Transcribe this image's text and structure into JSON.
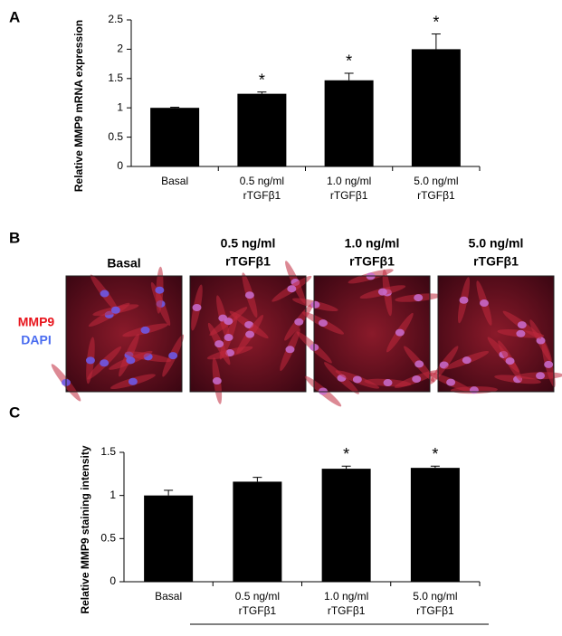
{
  "panel_labels": [
    "A",
    "B",
    "C"
  ],
  "image_panel": {
    "headers": [
      [
        "Basal"
      ],
      [
        "0.5 ng/ml",
        "rTGFβ1"
      ],
      [
        "1.0 ng/ml",
        "rTGFβ1"
      ],
      [
        "5.0 ng/ml",
        "rTGFβ1"
      ]
    ],
    "stain_labels": [
      {
        "text": "MMP9",
        "color": "#e8141c"
      },
      {
        "text": "DAPI",
        "color": "#4a6cf0"
      }
    ]
  },
  "chart_data": [
    {
      "type": "bar",
      "y_label": "Relative MMP9 mRNA expression",
      "color": "#000000",
      "categories": [
        [
          "Basal"
        ],
        [
          "0.5 ng/ml",
          "rTGFβ1"
        ],
        [
          "1.0 ng/ml",
          "rTGFβ1"
        ],
        [
          "5.0 ng/ml",
          "rTGFβ1"
        ]
      ],
      "values": [
        1.0,
        1.24,
        1.47,
        2.0
      ],
      "errors": [
        0.01,
        0.03,
        0.12,
        0.26
      ],
      "markers": [
        null,
        "*",
        "*",
        "*"
      ],
      "ylim": [
        0,
        2.5
      ],
      "yticks": [
        0,
        0.5,
        1,
        1.5,
        2,
        2.5
      ]
    },
    {
      "type": "bar",
      "y_label": "Relative MMP9 staining intensity",
      "color": "#000000",
      "categories": [
        [
          "Basal"
        ],
        [
          "0.5 ng/ml",
          "rTGFβ1"
        ],
        [
          "1.0 ng/ml",
          "rTGFβ1"
        ],
        [
          "5.0 ng/ml",
          "rTGFβ1"
        ]
      ],
      "values": [
        1.0,
        1.16,
        1.31,
        1.32
      ],
      "errors": [
        0.06,
        0.05,
        0.03,
        0.02
      ],
      "markers": [
        null,
        null,
        "*",
        "*"
      ],
      "ylim": [
        0,
        1.5
      ],
      "yticks": [
        0,
        0.5,
        1,
        1.5
      ]
    }
  ]
}
